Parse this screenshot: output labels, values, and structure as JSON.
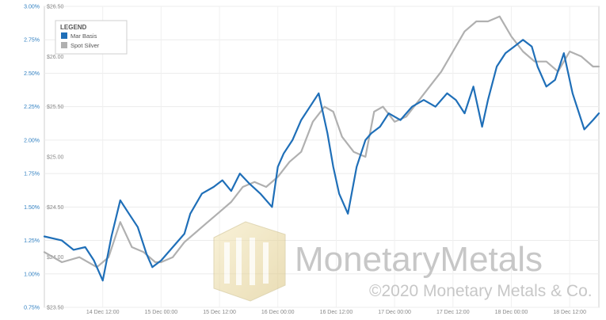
{
  "chart_data": {
    "type": "line",
    "legend": {
      "title": "LEGEND",
      "position": "top-left",
      "entries": [
        {
          "name": "Mar Basis",
          "color": "#1f6fb8"
        },
        {
          "name": "Spot Silver",
          "color": "#b0b0b0"
        }
      ]
    },
    "y_left": {
      "unit": "basis %",
      "range": [
        0.75,
        3.0
      ],
      "ticks": [
        "0.75%",
        "1.00%",
        "1.25%",
        "1.50%",
        "1.75%",
        "2.00%",
        "2.25%",
        "2.50%",
        "2.75%",
        "3.00%"
      ],
      "tick_color": "#2f7fc1"
    },
    "y_right": {
      "unit": "USD",
      "range": [
        23.5,
        26.5
      ],
      "ticks": [
        "$23.50",
        "$24.00",
        "$24.50",
        "$25.00",
        "$25.50",
        "$26.00",
        "$26.50"
      ]
    },
    "x": {
      "range": [
        0,
        9.5
      ],
      "unit_note": "half-days from 14 Dec 00:00",
      "ticks": [
        {
          "at": 1,
          "label": "14 Dec 12:00"
        },
        {
          "at": 2,
          "label": "15 Dec 00:00"
        },
        {
          "at": 3,
          "label": "15 Dec 12:00"
        },
        {
          "at": 4,
          "label": "16 Dec 00:00"
        },
        {
          "at": 5,
          "label": "16 Dec 12:00"
        },
        {
          "at": 6,
          "label": "17 Dec 00:00"
        },
        {
          "at": 7,
          "label": "17 Dec 12:00"
        },
        {
          "at": 8,
          "label": "18 Dec 00:00"
        },
        {
          "at": 9,
          "label": "18 Dec 12:00"
        }
      ]
    },
    "grid": true,
    "series": [
      {
        "name": "Mar Basis",
        "axis": "left",
        "color": "#1f6fb8",
        "x": [
          0,
          0.3,
          0.5,
          0.7,
          0.85,
          1.0,
          1.15,
          1.3,
          1.45,
          1.6,
          1.75,
          1.85,
          2.0,
          2.2,
          2.4,
          2.5,
          2.7,
          2.9,
          3.05,
          3.2,
          3.35,
          3.5,
          3.7,
          3.9,
          4.0,
          4.1,
          4.25,
          4.4,
          4.55,
          4.7,
          4.85,
          4.95,
          5.05,
          5.2,
          5.35,
          5.5,
          5.6,
          5.75,
          5.9,
          6.1,
          6.3,
          6.5,
          6.7,
          6.9,
          7.05,
          7.2,
          7.35,
          7.5,
          7.6,
          7.75,
          7.9,
          8.05,
          8.2,
          8.35,
          8.45,
          8.6,
          8.75,
          8.9,
          9.05,
          9.25,
          9.4,
          9.5
        ],
        "y": [
          1.28,
          1.25,
          1.18,
          1.2,
          1.1,
          0.95,
          1.28,
          1.55,
          1.45,
          1.35,
          1.15,
          1.05,
          1.1,
          1.2,
          1.3,
          1.45,
          1.6,
          1.65,
          1.7,
          1.62,
          1.75,
          1.68,
          1.6,
          1.5,
          1.8,
          1.9,
          2.0,
          2.15,
          2.25,
          2.35,
          2.05,
          1.8,
          1.6,
          1.45,
          1.8,
          2.0,
          2.05,
          2.1,
          2.2,
          2.15,
          2.25,
          2.3,
          2.25,
          2.35,
          2.3,
          2.2,
          2.4,
          2.1,
          2.3,
          2.55,
          2.65,
          2.7,
          2.75,
          2.7,
          2.55,
          2.4,
          2.45,
          2.65,
          2.35,
          2.08,
          2.15,
          2.2
        ]
      },
      {
        "name": "Spot Silver",
        "axis": "right",
        "color": "#b0b0b0",
        "x": [
          0,
          0.3,
          0.6,
          0.9,
          1.1,
          1.3,
          1.5,
          1.7,
          1.9,
          2.0,
          2.2,
          2.4,
          2.6,
          2.8,
          3.0,
          3.2,
          3.4,
          3.6,
          3.8,
          4.0,
          4.2,
          4.4,
          4.6,
          4.8,
          4.95,
          5.1,
          5.3,
          5.5,
          5.65,
          5.8,
          6.0,
          6.2,
          6.4,
          6.6,
          6.8,
          7.0,
          7.2,
          7.4,
          7.6,
          7.8,
          8.0,
          8.2,
          8.4,
          8.6,
          8.8,
          9.0,
          9.2,
          9.4,
          9.5
        ],
        "y": [
          24.05,
          23.95,
          24.0,
          23.9,
          24.0,
          24.35,
          24.1,
          24.05,
          23.95,
          23.95,
          24.0,
          24.15,
          24.25,
          24.35,
          24.45,
          24.55,
          24.7,
          24.75,
          24.7,
          24.8,
          24.95,
          25.05,
          25.35,
          25.5,
          25.45,
          25.2,
          25.05,
          25.0,
          25.45,
          25.5,
          25.35,
          25.4,
          25.55,
          25.7,
          25.85,
          26.05,
          26.25,
          26.35,
          26.35,
          26.4,
          26.2,
          26.05,
          25.95,
          25.95,
          25.85,
          26.05,
          26.0,
          25.9,
          25.9
        ]
      }
    ]
  },
  "watermark": {
    "brand": "MonetaryMetals",
    "copyright": "©2020 Monetary Metals & Co."
  }
}
